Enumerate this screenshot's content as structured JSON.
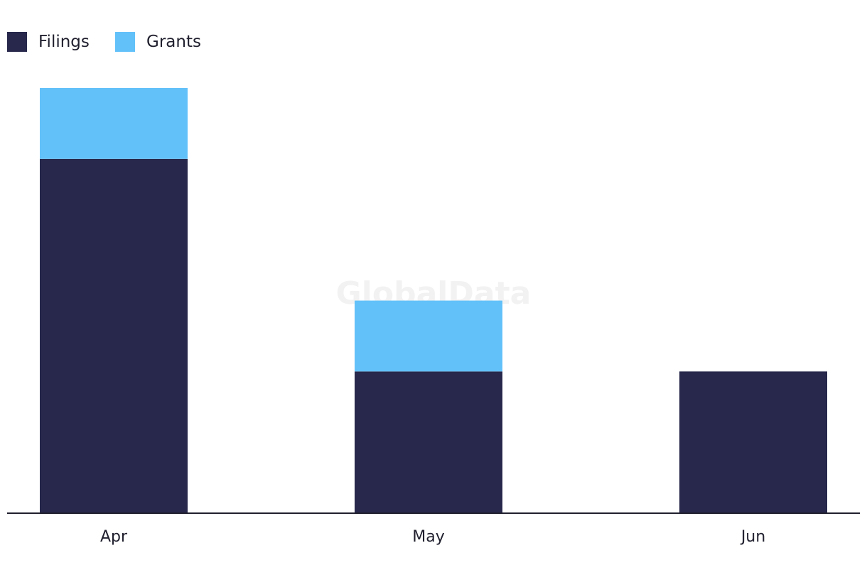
{
  "chart_data": {
    "type": "bar",
    "stacked": true,
    "categories": [
      "Apr",
      "May",
      "Jun"
    ],
    "series": [
      {
        "name": "Filings",
        "values": [
          5,
          2,
          2
        ],
        "color": "#27284b"
      },
      {
        "name": "Grants",
        "values": [
          1,
          1,
          0
        ],
        "color": "#62c1f9"
      }
    ],
    "ylim": [
      0,
      6
    ],
    "grid": false,
    "legend_position": "top-left",
    "title": "",
    "xlabel": "",
    "ylabel": "",
    "watermark": "GlobalData"
  }
}
